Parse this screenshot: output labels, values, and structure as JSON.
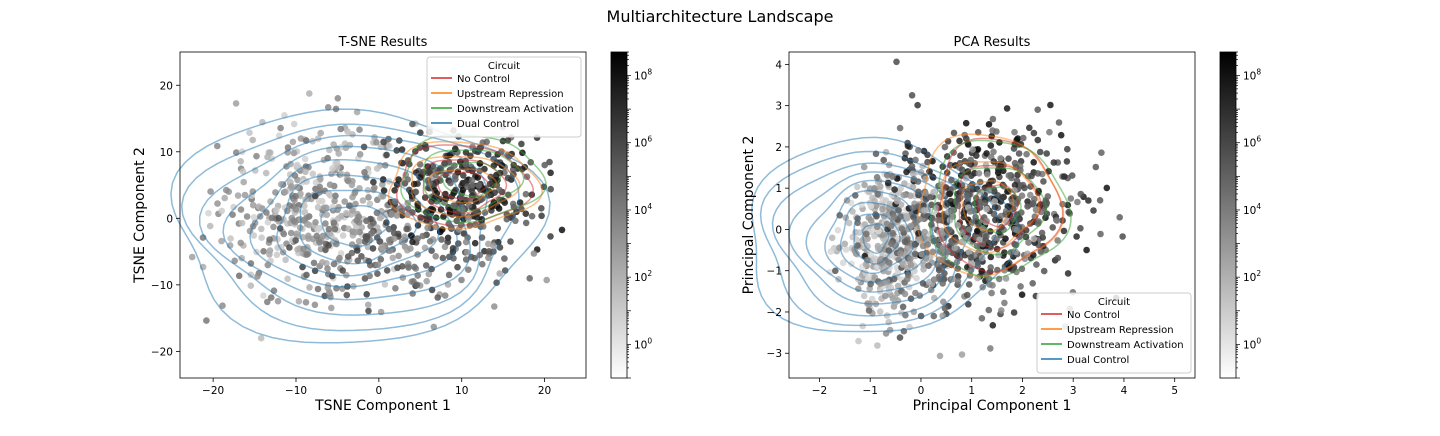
{
  "figure": {
    "suptitle": "Multiarchitecture Landscape"
  },
  "chart_data": [
    {
      "type": "scatter",
      "title": "T-SNE Results",
      "xlabel": "TSNE Component 1",
      "ylabel": "TSNE Component 2",
      "xlim": [
        -24,
        25
      ],
      "ylim": [
        -24,
        25
      ],
      "xticks": [
        -20,
        -10,
        0,
        10,
        20
      ],
      "yticks": [
        -20,
        -10,
        0,
        10,
        20
      ],
      "xtick_labels": [
        "−20",
        "−10",
        "0",
        "10",
        "20"
      ],
      "ytick_labels": [
        "−20",
        "−10",
        "0",
        "10",
        "20"
      ],
      "grid": false,
      "legend": {
        "title": "Circuit",
        "placement": "upper right",
        "entries": [
          {
            "name": "No Control",
            "color": "#d62728"
          },
          {
            "name": "Upstream Repression",
            "color": "#ff7f0e"
          },
          {
            "name": "Downstream Activation",
            "color": "#2ca02c"
          },
          {
            "name": "Dual Control",
            "color": "#1f77b4"
          }
        ]
      },
      "clusters": [
        {
          "cx": -8,
          "cy": 2,
          "sx": 6,
          "sy": 6,
          "n": 420,
          "lo": 0.1,
          "hi": 0.55
        },
        {
          "cx": 10,
          "cy": 4,
          "sx": 4.5,
          "sy": 4,
          "n": 340,
          "lo": 0.55,
          "hi": 1.0
        },
        {
          "cx": 2,
          "cy": -5,
          "sx": 7,
          "sy": 4,
          "n": 200,
          "lo": 0.3,
          "hi": 0.8
        }
      ],
      "kde": [
        {
          "series": "Dual Control",
          "color": "#1f77b4",
          "cx": -3,
          "cy": -1,
          "rx": [
            4,
            7,
            9.5,
            12,
            14.5,
            17,
            19.5,
            22
          ],
          "ry": [
            3,
            5.5,
            7.5,
            9.5,
            11.5,
            13.5,
            15.5,
            17.5
          ]
        },
        {
          "series": "No Control",
          "color": "#d62728",
          "cx": 10,
          "cy": 5,
          "rx": [
            3,
            5,
            8
          ],
          "ry": [
            2,
            4,
            6
          ]
        },
        {
          "series": "Upstream Repression",
          "color": "#ff7f0e",
          "cx": 10,
          "cy": 5,
          "rx": [
            4,
            6.5,
            9
          ],
          "ry": [
            2.5,
            4.5,
            6.5
          ]
        },
        {
          "series": "Downstream Activation",
          "color": "#2ca02c",
          "cx": 11,
          "cy": 6,
          "rx": [
            3.5,
            6,
            8.5
          ],
          "ry": [
            2.5,
            4.5,
            6.5
          ]
        }
      ],
      "colorbar": {
        "scale": "log",
        "min": 0.1,
        "max": 500000000,
        "ticks": [
          1,
          100,
          10000,
          1000000,
          100000000
        ],
        "tick_labels": [
          {
            "base": "10",
            "exp": "0"
          },
          {
            "base": "10",
            "exp": "2"
          },
          {
            "base": "10",
            "exp": "4"
          },
          {
            "base": "10",
            "exp": "6"
          },
          {
            "base": "10",
            "exp": "8"
          }
        ]
      }
    },
    {
      "type": "scatter",
      "title": "PCA Results",
      "xlabel": "Principal Component 1",
      "ylabel": "Principal Component 2",
      "xlim": [
        -2.6,
        5.4
      ],
      "ylim": [
        -3.6,
        4.3
      ],
      "xticks": [
        -2,
        -1,
        0,
        1,
        2,
        3,
        4,
        5
      ],
      "yticks": [
        -3,
        -2,
        -1,
        0,
        1,
        2,
        3,
        4
      ],
      "xtick_labels": [
        "−2",
        "−1",
        "0",
        "1",
        "2",
        "3",
        "4",
        "5"
      ],
      "ytick_labels": [
        "−3",
        "−2",
        "−1",
        "0",
        "1",
        "2",
        "3",
        "4"
      ],
      "grid": false,
      "legend": {
        "title": "Circuit",
        "placement": "lower right",
        "entries": [
          {
            "name": "No Control",
            "color": "#d62728"
          },
          {
            "name": "Upstream Repression",
            "color": "#ff7f0e"
          },
          {
            "name": "Downstream Activation",
            "color": "#2ca02c"
          },
          {
            "name": "Dual Control",
            "color": "#1f77b4"
          }
        ]
      },
      "clusters": [
        {
          "cx": -0.7,
          "cy": -0.3,
          "sx": 0.45,
          "sy": 0.8,
          "n": 330,
          "lo": 0.05,
          "hi": 0.4
        },
        {
          "cx": 1.3,
          "cy": 0.5,
          "sx": 0.9,
          "sy": 1.0,
          "n": 520,
          "lo": 0.5,
          "hi": 1.0
        },
        {
          "cx": 0.3,
          "cy": -0.3,
          "sx": 0.8,
          "sy": 0.9,
          "n": 260,
          "lo": 0.25,
          "hi": 0.7
        }
      ],
      "kde": [
        {
          "series": "Dual Control",
          "color": "#1f77b4",
          "cx": -0.9,
          "cy": -0.2,
          "rx": [
            0.25,
            0.45,
            0.7,
            0.95,
            1.25,
            1.55,
            1.9,
            2.25,
            2.6
          ],
          "ry": [
            0.35,
            0.6,
            0.85,
            1.1,
            1.35,
            1.6,
            1.85,
            2.1,
            2.35
          ]
        },
        {
          "series": "No Control",
          "color": "#d62728",
          "cx": 1.5,
          "cy": 0.6,
          "rx": [
            0.4,
            0.8,
            1.2
          ],
          "ry": [
            0.5,
            1.0,
            1.6
          ]
        },
        {
          "series": "Upstream Repression",
          "color": "#ff7f0e",
          "cx": 1.3,
          "cy": 0.6,
          "rx": [
            0.5,
            0.95,
            1.4
          ],
          "ry": [
            0.6,
            1.1,
            1.7
          ]
        },
        {
          "series": "Downstream Activation",
          "color": "#2ca02c",
          "cx": 1.5,
          "cy": 0.5,
          "rx": [
            0.45,
            0.9,
            1.35
          ],
          "ry": [
            0.55,
            1.05,
            1.65
          ]
        }
      ],
      "colorbar": {
        "scale": "log",
        "min": 0.1,
        "max": 500000000,
        "ticks": [
          1,
          100,
          10000,
          1000000,
          100000000
        ],
        "tick_labels": [
          {
            "base": "10",
            "exp": "0"
          },
          {
            "base": "10",
            "exp": "2"
          },
          {
            "base": "10",
            "exp": "4"
          },
          {
            "base": "10",
            "exp": "6"
          },
          {
            "base": "10",
            "exp": "8"
          }
        ]
      }
    }
  ]
}
